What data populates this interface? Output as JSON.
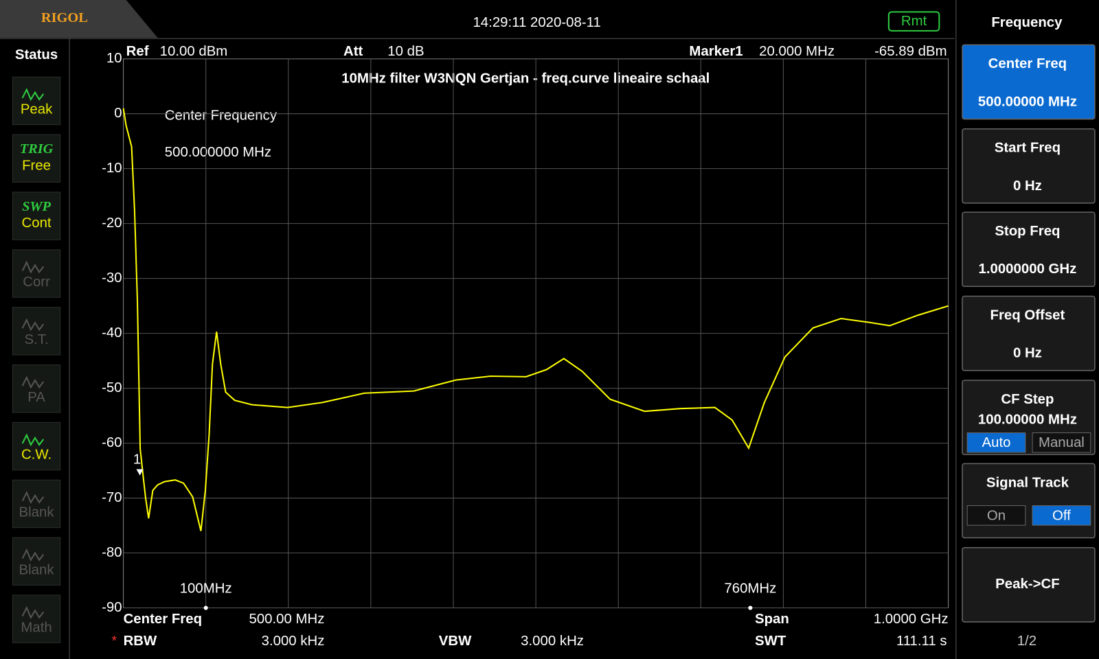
{
  "header": {
    "logo": "RIGOL",
    "datetime": "14:29:11 2020-08-11",
    "remote": "Rmt"
  },
  "status": {
    "title": "Status",
    "items": [
      {
        "label": "Peak",
        "active": true
      },
      {
        "tag": "TRIG",
        "label": "Free",
        "active": true
      },
      {
        "tag": "SWP",
        "label": "Cont",
        "active": true
      },
      {
        "label": "Corr",
        "active": false
      },
      {
        "label": "S.T.",
        "active": false
      },
      {
        "label": "PA",
        "active": false
      },
      {
        "label": "C.W.",
        "active": true
      },
      {
        "label": "Blank",
        "active": false
      },
      {
        "label": "Blank",
        "active": false
      },
      {
        "label": "Math",
        "active": false
      }
    ]
  },
  "info": {
    "ref_label": "Ref",
    "ref": "10.00 dBm",
    "att_label": "Att",
    "att": "10 dB"
  },
  "overlay": {
    "line1": "Center Frequency",
    "line2": "500.000000 MHz"
  },
  "footer": {
    "center_label": "Center Freq",
    "center": "500.00 MHz",
    "span_label": "Span",
    "span": "1.0000 GHz",
    "rbw_flag": "*",
    "rbw_label": "RBW",
    "rbw": "3.000 kHz",
    "vbw_label": "VBW",
    "vbw": "3.000 kHz",
    "swt_label": "SWT",
    "swt": "111.11 s"
  },
  "menu": {
    "title": "Frequency",
    "page": "1/2",
    "buttons": [
      {
        "label": "Center Freq",
        "value": "500.00000 MHz",
        "selected": true
      },
      {
        "label": "Start Freq",
        "value": "0 Hz"
      },
      {
        "label": "Stop Freq",
        "value": "1.0000000 GHz"
      },
      {
        "label": "Freq Offset",
        "value": "0 Hz"
      },
      {
        "label": "CF Step",
        "value": "100.00000 MHz",
        "options": [
          "Auto",
          "Manual"
        ],
        "option_on": 0
      },
      {
        "label": "Signal Track",
        "options": [
          "On",
          "Off"
        ],
        "option_on": 1
      },
      {
        "label": "Peak->CF"
      }
    ]
  },
  "chart_data": {
    "type": "line",
    "title": "10MHz filter W3NQN Gertjan -  freq.curve lineaire schaal",
    "xlim": [
      0,
      1000
    ],
    "ylim": [
      -90,
      10
    ],
    "yticks": [
      10,
      0,
      -10,
      -20,
      -30,
      -40,
      -50,
      -60,
      -70,
      -80,
      -90
    ],
    "grid": true,
    "series": [
      {
        "color": "#ffff00",
        "x": [
          0,
          3.4,
          10,
          13.6,
          17,
          20.4,
          24,
          27,
          30.6,
          35.7,
          41.6,
          50,
          63,
          73,
          84,
          94,
          99.4,
          104,
          108,
          113,
          118,
          124,
          135,
          156,
          199,
          241,
          292,
          352,
          403,
          445,
          488,
          513,
          534,
          556,
          590,
          632,
          675,
          717,
          738,
          758,
          777,
          802,
          836,
          870,
          904,
          929,
          963,
          1000
        ],
        "values": [
          1,
          -2.2,
          -6,
          -17.6,
          -34,
          -61,
          -66,
          -70,
          -73.7,
          -68.6,
          -67.6,
          -67,
          -66.7,
          -67.3,
          -69.8,
          -76,
          -68.6,
          -58.4,
          -45.6,
          -39.7,
          -45.6,
          -50.7,
          -52.2,
          -53,
          -53.5,
          -52.6,
          -50.9,
          -50.5,
          -48.5,
          -47.8,
          -47.9,
          -46.6,
          -44.6,
          -46.9,
          -52,
          -54.2,
          -53.7,
          -53.5,
          -55.8,
          -60.9,
          -52.6,
          -44.3,
          -39,
          -37.3,
          -38,
          -38.6,
          -36.7,
          -35
        ]
      }
    ],
    "marker": {
      "name": "Marker1",
      "label": "1",
      "x": 20,
      "y": -65.89,
      "x_label": "20.000 MHz",
      "y_label": "-65.89 dBm"
    },
    "annotations": [
      {
        "text": "100MHz",
        "x": 100
      },
      {
        "text": "760MHz",
        "x": 760
      }
    ]
  }
}
